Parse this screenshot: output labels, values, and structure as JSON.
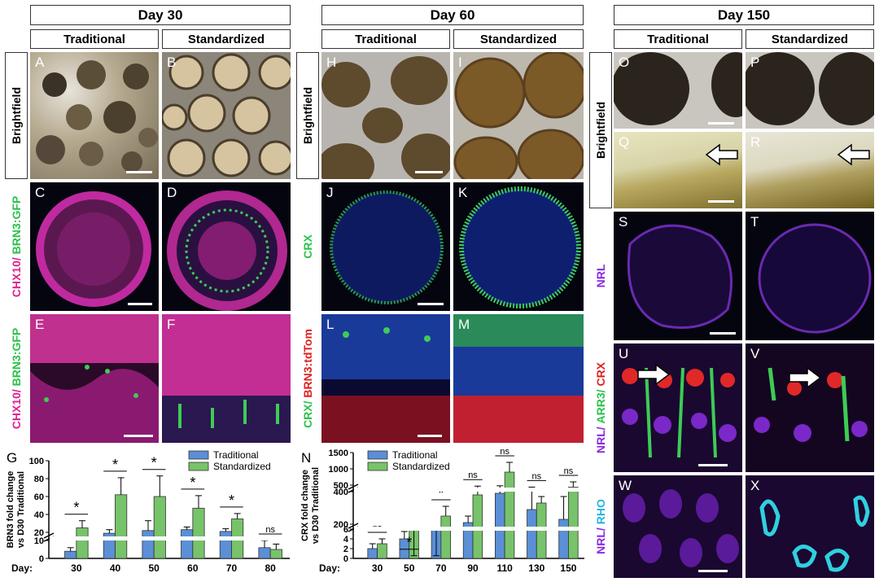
{
  "headers": {
    "day30": "Day 30",
    "day60": "Day 60",
    "day150": "Day 150",
    "traditional": "Traditional",
    "standardized": "Standardized"
  },
  "row_labels": {
    "brightfield": "Brightfield",
    "chx10": "CHX10/",
    "brn3gfp": "BRN3:GFP",
    "crx": "CRX",
    "crx2": "CRX/",
    "brn3tdtom": "BRN3:tdTom",
    "nrl": "NRL",
    "nrl2": "NRL/",
    "arr3": "ARR3/",
    "crx3": "CRX",
    "rho": "RHO"
  },
  "panel_letters": [
    "A",
    "B",
    "C",
    "D",
    "E",
    "F",
    "H",
    "I",
    "J",
    "K",
    "L",
    "M",
    "O",
    "P",
    "Q",
    "R",
    "S",
    "T",
    "U",
    "V",
    "W",
    "X"
  ],
  "colors": {
    "magenta": "#e0208f",
    "green": "#2bc24a",
    "red": "#e02020",
    "purple": "#8a2be2",
    "cyan": "#27b4e0",
    "blue_bar": "#5b8fd6",
    "green_bar": "#77c36a"
  },
  "chart_data": [
    {
      "type": "bar",
      "panel": "G",
      "ylabel": "BRN3 fold change vs D30 Traditional",
      "xlabel": "Day:",
      "categories": [
        "30",
        "40",
        "50",
        "60",
        "70",
        "80"
      ],
      "series": [
        {
          "name": "Traditional",
          "values": [
            4,
            19,
            22,
            23,
            21,
            6
          ],
          "errors": [
            2,
            4,
            11,
            3,
            3,
            4
          ]
        },
        {
          "name": "Standardized",
          "values": [
            25,
            62,
            60,
            47,
            35,
            5
          ],
          "errors": [
            8,
            19,
            23,
            14,
            6,
            3
          ]
        }
      ],
      "yticks": [
        "0",
        "10",
        "20",
        "40",
        "60",
        "80",
        "100"
      ],
      "significance": [
        "*",
        "*",
        "*",
        "*",
        "*",
        "ns"
      ],
      "legend_position": "top"
    },
    {
      "type": "bar",
      "panel": "N",
      "ylabel": "CRX fold change vs D30 Traditional",
      "xlabel": "Day:",
      "categories": [
        "30",
        "50",
        "70",
        "90",
        "110",
        "130",
        "150"
      ],
      "series": [
        {
          "name": "Traditional",
          "values": [
            2,
            4,
            6,
            210,
            390,
            290,
            230
          ],
          "errors": [
            1,
            1.5,
            0.5,
            40,
            90,
            150,
            140
          ]
        },
        {
          "name": "Standardized",
          "values": [
            3,
            6,
            250,
            380,
            900,
            330,
            440
          ],
          "errors": [
            1,
            0.3,
            60,
            90,
            300,
            40,
            160
          ]
        }
      ],
      "yticks": [
        "0",
        "2",
        "4",
        "6",
        "200",
        "400",
        "500",
        "1000",
        "1500"
      ],
      "significance": [
        "ns",
        "*",
        "*",
        "ns",
        "ns",
        "ns",
        "ns"
      ],
      "legend_position": "top"
    }
  ]
}
